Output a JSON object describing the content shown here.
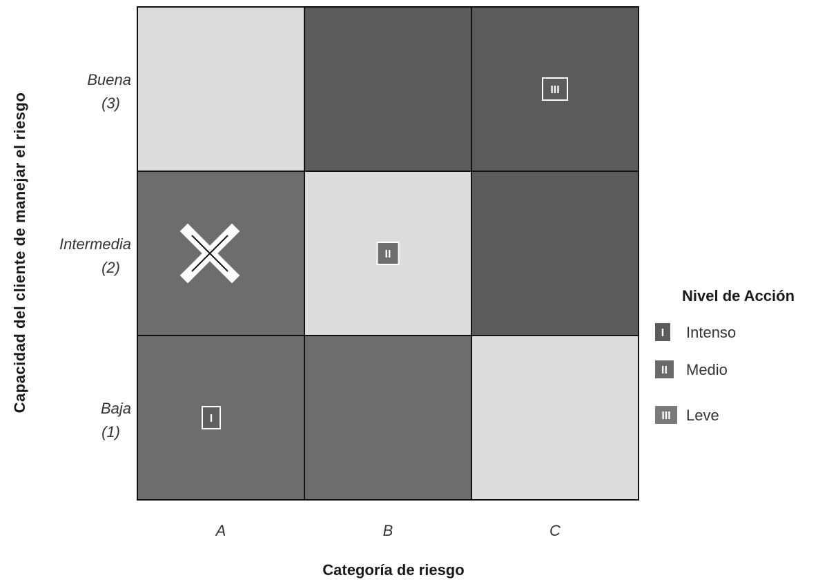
{
  "chart_data": {
    "type": "heatmap",
    "xlabel": "Categoría de riesgo",
    "ylabel": "Capacidad del cliente de manejar el riesgo",
    "x_categories": [
      "A",
      "B",
      "C"
    ],
    "y_categories": [
      {
        "name": "Buena",
        "value": "(3)"
      },
      {
        "name": "Intermedia",
        "value": "(2)"
      },
      {
        "name": "Baja",
        "value": "(1)"
      }
    ],
    "levels": [
      {
        "symbol": "I",
        "label": "Intenso",
        "color": "#6d6d6d"
      },
      {
        "symbol": "II",
        "label": "Medio",
        "color": "#5b5b5b"
      },
      {
        "symbol": "III",
        "label": "Leve",
        "color": "#dcdcdc"
      }
    ],
    "cells": [
      {
        "x": "A",
        "y": "Buena",
        "level": "III",
        "color": "#dcdcdc"
      },
      {
        "x": "B",
        "y": "Buena",
        "level": "II",
        "color": "#5b5b5b"
      },
      {
        "x": "C",
        "y": "Buena",
        "level": "II",
        "color": "#5b5b5b",
        "badge": "III"
      },
      {
        "x": "A",
        "y": "Intermedia",
        "level": "I",
        "color": "#6d6d6d",
        "marker": "X"
      },
      {
        "x": "B",
        "y": "Intermedia",
        "level": "III",
        "color": "#dcdcdc",
        "badge": "II"
      },
      {
        "x": "C",
        "y": "Intermedia",
        "level": "II",
        "color": "#5b5b5b"
      },
      {
        "x": "A",
        "y": "Baja",
        "level": "I",
        "color": "#6d6d6d",
        "badge": "I"
      },
      {
        "x": "B",
        "y": "Baja",
        "level": "I",
        "color": "#6d6d6d"
      },
      {
        "x": "C",
        "y": "Baja",
        "level": "III",
        "color": "#dcdcdc"
      }
    ],
    "legend": {
      "title": "Nivel de Acción",
      "position": "right"
    },
    "grid": true
  }
}
